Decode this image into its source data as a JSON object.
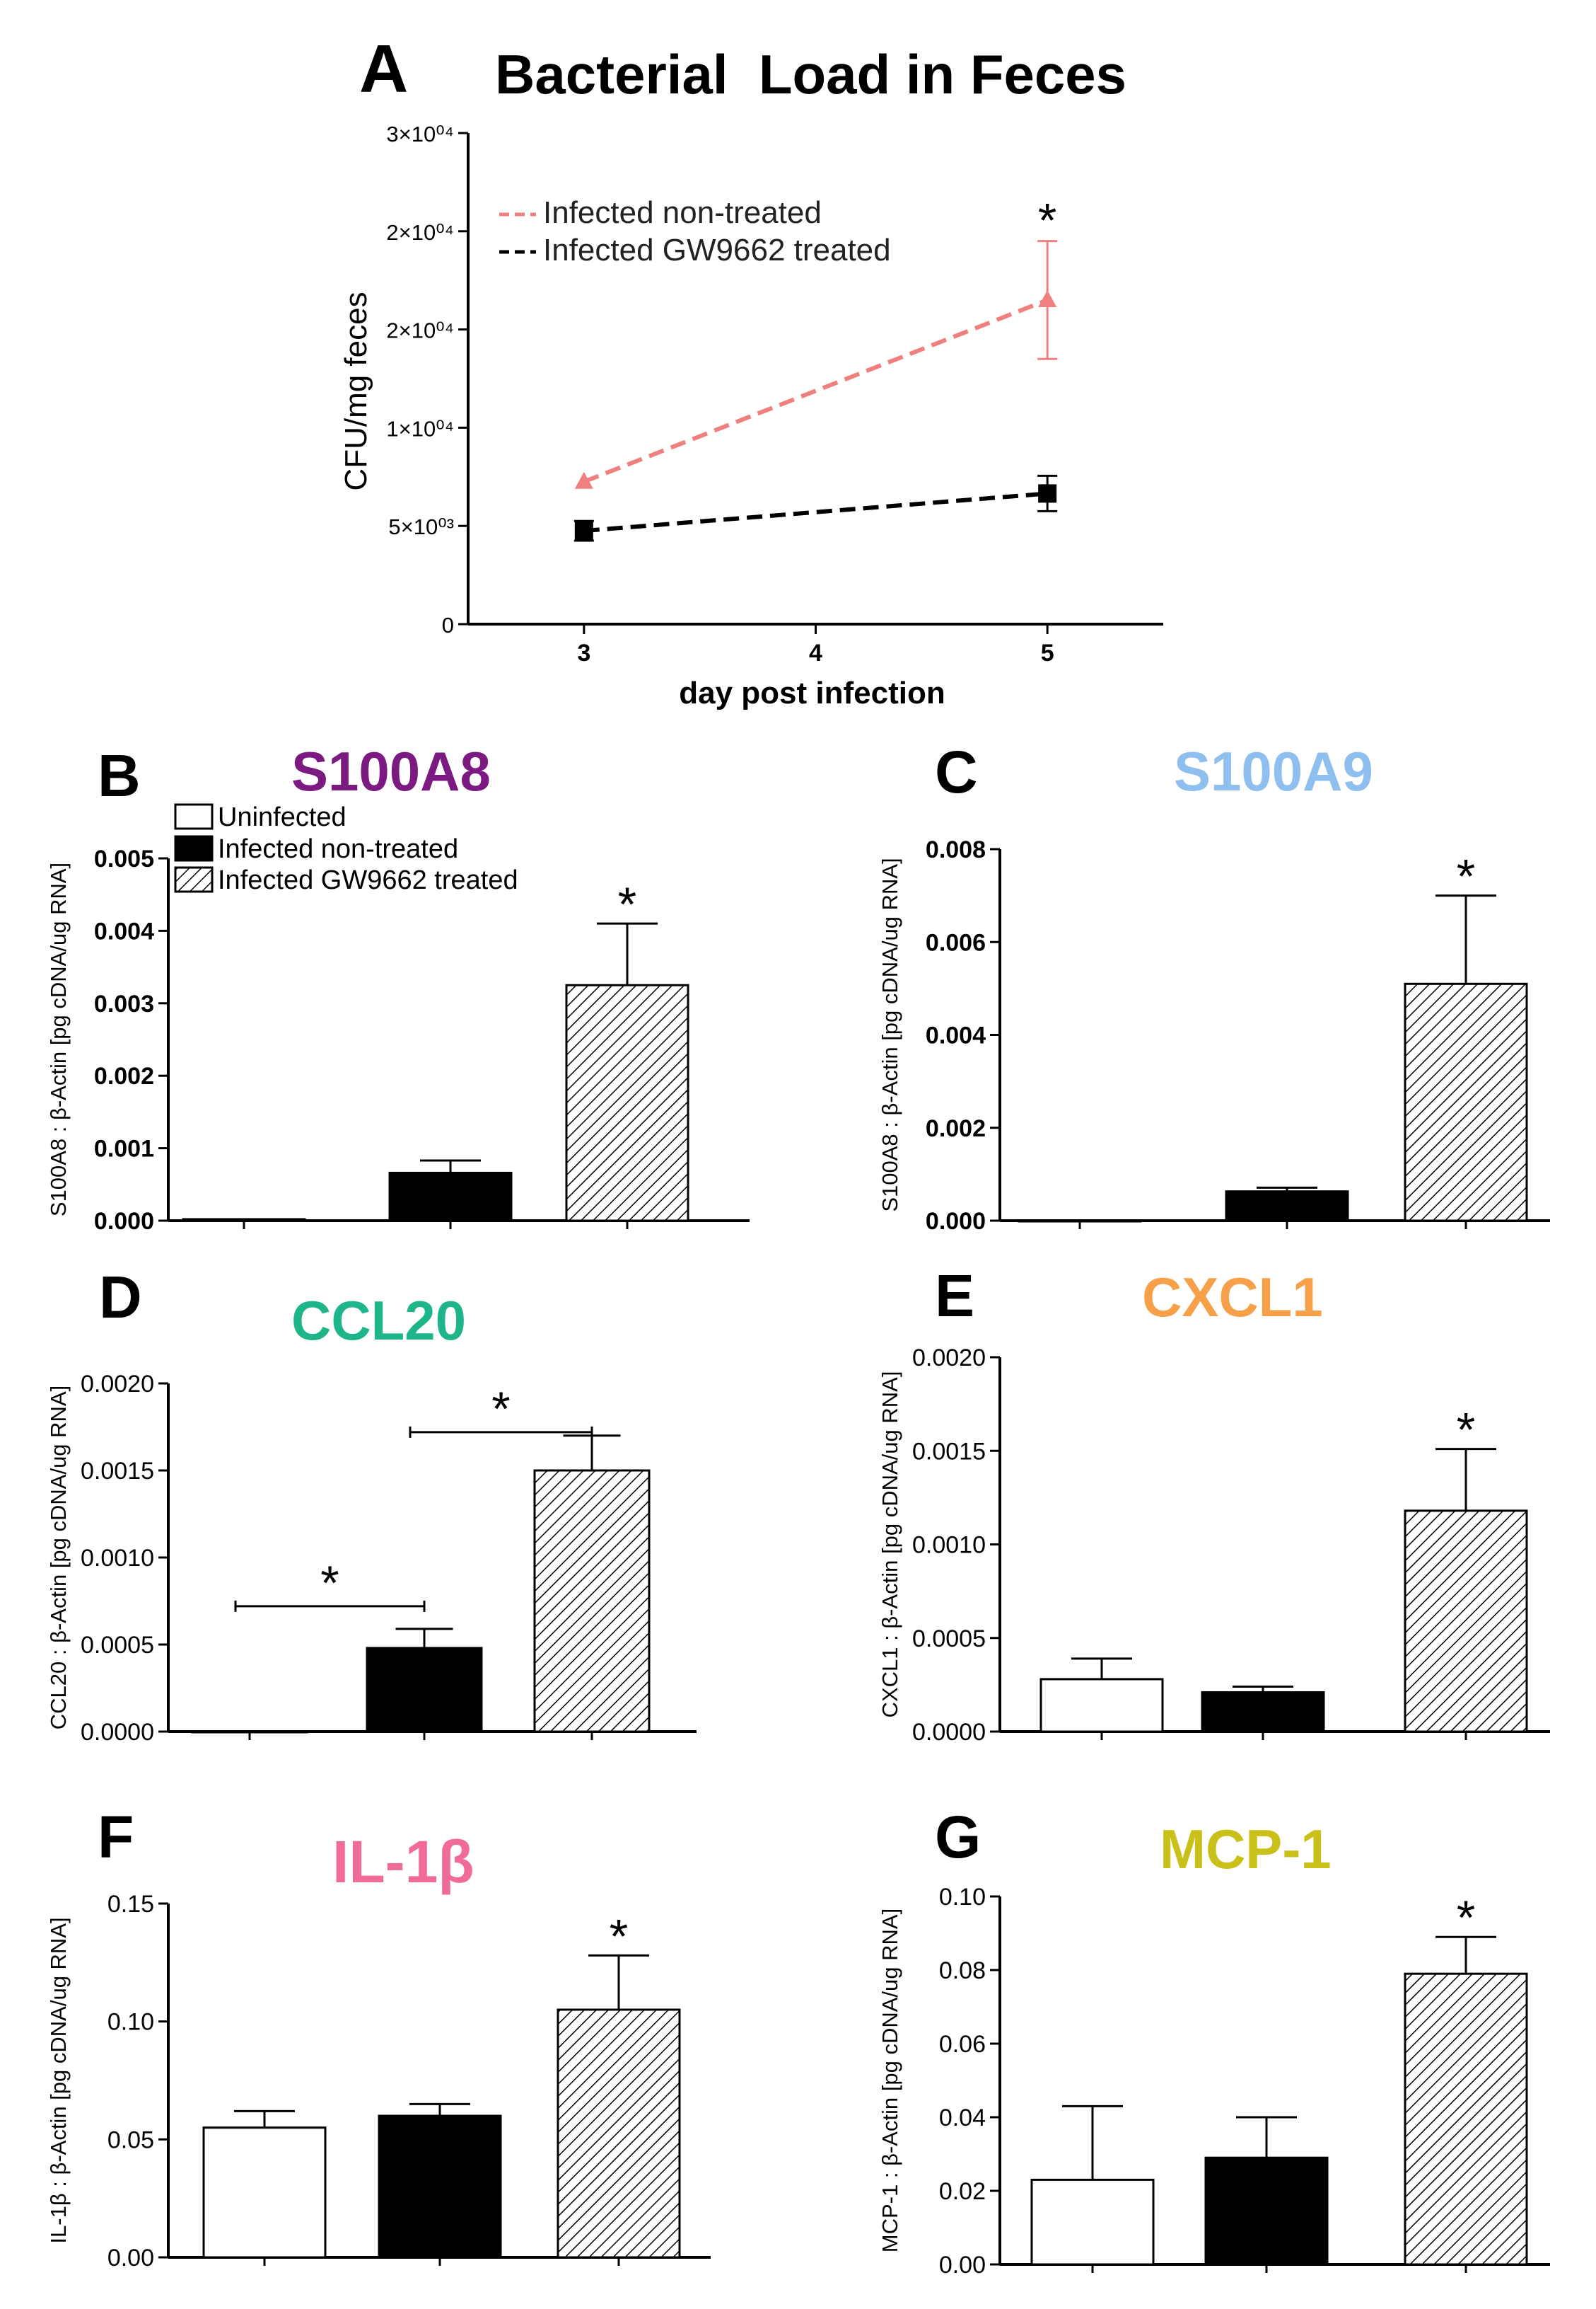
{
  "figure": {
    "panels": {
      "A": {
        "letter": "A",
        "title": "Bacterial  Load in Feces"
      },
      "B": {
        "letter": "B",
        "title": "S100A8"
      },
      "C": {
        "letter": "C",
        "title": "S100A9"
      },
      "D": {
        "letter": "D",
        "title": "CCL20"
      },
      "E": {
        "letter": "E",
        "title": "CXCL1"
      },
      "F": {
        "letter": "F",
        "title": "IL-1β"
      },
      "G": {
        "letter": "G",
        "title": "MCP-1"
      }
    },
    "legend_bars": [
      "Uninfected",
      "Infected non-treated",
      "Infected GW9662 treated"
    ],
    "significance_mark": "*"
  },
  "chart_data": [
    {
      "id": "A",
      "type": "line",
      "title": "Bacterial  Load in Feces",
      "xlabel": "day post infection",
      "ylabel": "CFU/mg feces",
      "xticks": [
        "3",
        "4",
        "5"
      ],
      "xlim": [
        2.5,
        5.5
      ],
      "ylim": [
        0,
        5
      ],
      "yticks": [
        "0",
        "5×10⁰³",
        "1×10⁰⁴",
        "2×10⁰⁴",
        "2×10⁰⁴",
        "3×10⁰⁴"
      ],
      "legend": "top-left",
      "series": [
        {
          "name": "Infected non-treated",
          "color": "#f07f7f",
          "dash": true,
          "marker": "triangle",
          "x": [
            3,
            5
          ],
          "y": [
            1.45,
            3.3
          ],
          "err": [
            0,
            0.6
          ],
          "sig": [
            false,
            true
          ]
        },
        {
          "name": "Infected GW9662 treated",
          "color": "#000000",
          "dash": true,
          "marker": "square",
          "x": [
            3,
            5
          ],
          "y": [
            0.95,
            1.33
          ],
          "err": [
            0.1,
            0.18
          ],
          "sig": [
            false,
            false
          ]
        }
      ]
    },
    {
      "id": "B",
      "type": "bar",
      "title": "S100A8",
      "title_color": "#7b1a80",
      "ylabel": "S100A8 : β-Actin [pg cDNA/ug RNA]",
      "ylim": [
        0,
        0.005
      ],
      "yticks": [
        "0.000",
        "0.001",
        "0.002",
        "0.003",
        "0.004",
        "0.005"
      ],
      "ticks_bold": true,
      "categories": [
        "Uninfected",
        "Infected non-treated",
        "Infected GW9662 treated"
      ],
      "values": [
        2e-05,
        0.00066,
        0.00325
      ],
      "errors": [
        0,
        0.00017,
        0.00085
      ],
      "sig": [
        false,
        false,
        true
      ],
      "legend": "top-left"
    },
    {
      "id": "C",
      "type": "bar",
      "title": "S100A9",
      "title_color": "#8fbfef",
      "ylabel": "S100A8 : β-Actin [pg cDNA/ug RNA]",
      "ylim": [
        0,
        0.008
      ],
      "yticks": [
        "0.000",
        "0.002",
        "0.004",
        "0.006",
        "0.008"
      ],
      "ticks_bold": true,
      "categories": [
        "Uninfected",
        "Infected non-treated",
        "Infected GW9662 treated"
      ],
      "values": [
        0,
        0.00063,
        0.0051
      ],
      "errors": [
        0,
        8e-05,
        0.0019
      ],
      "sig": [
        false,
        false,
        true
      ]
    },
    {
      "id": "D",
      "type": "bar",
      "title": "CCL20",
      "title_color": "#1fb58a",
      "ylabel": "CCL20 : β-Actin [pg cDNA/ug RNA]",
      "ylim": [
        0,
        0.002
      ],
      "yticks": [
        "0.0000",
        "0.0005",
        "0.0010",
        "0.0015",
        "0.0020"
      ],
      "ticks_bold": false,
      "categories": [
        "Uninfected",
        "Infected non-treated",
        "Infected GW9662 treated"
      ],
      "values": [
        0,
        0.00048,
        0.0015
      ],
      "errors": [
        0,
        0.00011,
        0.0002
      ],
      "sig": [
        false,
        false,
        false
      ],
      "brackets": [
        {
          "from": 0,
          "to": 1,
          "y": 0.00072,
          "label": "*"
        },
        {
          "from": 1,
          "to": 2,
          "y": 0.00172,
          "label": "*"
        }
      ]
    },
    {
      "id": "E",
      "type": "bar",
      "title": "CXCL1",
      "title_color": "#f7a04a",
      "ylabel": "CXCL1 : β-Actin [pg cDNA/ug RNA]",
      "ylim": [
        0,
        0.002
      ],
      "yticks": [
        "0.0000",
        "0.0005",
        "0.0010",
        "0.0015",
        "0.0020"
      ],
      "ticks_bold": false,
      "categories": [
        "Uninfected",
        "Infected non-treated",
        "Infected GW9662 treated"
      ],
      "values": [
        0.00028,
        0.00021,
        0.00118
      ],
      "errors": [
        0.00011,
        3e-05,
        0.00033
      ],
      "sig": [
        false,
        false,
        true
      ]
    },
    {
      "id": "F",
      "type": "bar",
      "title": "IL-1β",
      "title_color": "#f06a9a",
      "ylabel": "IL-1β : β-Actin [pg cDNA/ug RNA]",
      "ylim": [
        0,
        0.15
      ],
      "yticks": [
        "0.00",
        "0.05",
        "0.10",
        "0.15"
      ],
      "ticks_bold": false,
      "categories": [
        "Uninfected",
        "Infected non-treated",
        "Infected GW9662 treated"
      ],
      "values": [
        0.055,
        0.06,
        0.105
      ],
      "errors": [
        0.007,
        0.005,
        0.023
      ],
      "sig": [
        false,
        false,
        true
      ]
    },
    {
      "id": "G",
      "type": "bar",
      "title": "MCP-1",
      "title_color": "#c9c01a",
      "ylabel": "MCP-1 : β-Actin [pg cDNA/ug RNA]",
      "ylim": [
        0,
        0.1
      ],
      "yticks": [
        "0.00",
        "0.02",
        "0.04",
        "0.06",
        "0.08",
        "0.10"
      ],
      "ticks_bold": false,
      "categories": [
        "Uninfected",
        "Infected non-treated",
        "Infected GW9662 treated"
      ],
      "values": [
        0.023,
        0.029,
        0.079
      ],
      "errors": [
        0.02,
        0.011,
        0.01
      ],
      "sig": [
        false,
        false,
        true
      ]
    }
  ]
}
